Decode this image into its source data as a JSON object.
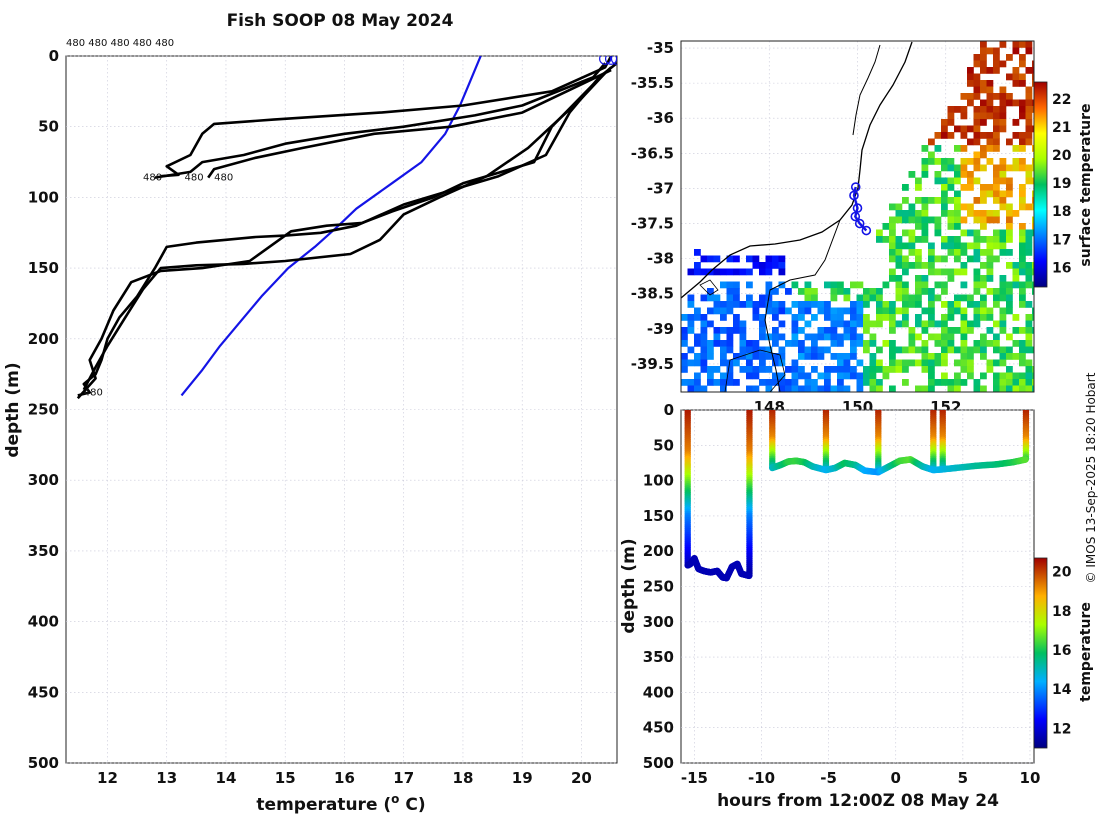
{
  "title": "Fish SOOP 08 May 2024",
  "credit": "© IMOS 13-Sep-2025 18:20 Hobart",
  "colors": {
    "profile": "#000000",
    "climatology": "#1414e6",
    "track": "#1414e6",
    "coast": "#000000"
  },
  "chart_data": [
    {
      "type": "line",
      "name": "temperature-depth-profile",
      "xlabel": "temperature (o C)",
      "xlabel_main": "temperature (",
      "xlabel_sup": "o",
      "xlabel_end": " C)",
      "ylabel": "depth (m)",
      "xlim": [
        11.3,
        20.6
      ],
      "ylim": [
        500,
        0
      ],
      "xticks": [
        12,
        13,
        14,
        15,
        16,
        17,
        18,
        19,
        20
      ],
      "yticks": [
        0,
        50,
        100,
        150,
        200,
        250,
        300,
        350,
        400,
        450,
        500
      ],
      "top_annotation": "480 480 480 480 480",
      "labels_480": [
        {
          "text": "480",
          "x": 12.6,
          "y": 88
        },
        {
          "text": "480",
          "x": 13.3,
          "y": 88
        },
        {
          "text": "480",
          "x": 13.8,
          "y": 88
        },
        {
          "text": "480",
          "x": 11.6,
          "y": 240
        }
      ],
      "series": [
        {
          "name": "climatology",
          "color": "#1414e6",
          "x": [
            18.3,
            18.1,
            17.95,
            17.7,
            17.3,
            16.8,
            16.2,
            15.9,
            15.5,
            15.05,
            14.6,
            14.2,
            13.9,
            13.6,
            13.25
          ],
          "y": [
            0,
            20,
            35,
            55,
            75,
            90,
            108,
            120,
            135,
            150,
            170,
            190,
            205,
            222,
            240
          ]
        },
        {
          "name": "profile-1",
          "color": "#000000",
          "x": [
            20.5,
            20.4,
            19.5,
            18.0,
            16.6,
            14.8,
            13.8,
            13.6,
            13.4,
            13.0,
            13.2,
            12.9
          ],
          "y": [
            0,
            8,
            25,
            35,
            40,
            45,
            48,
            55,
            70,
            78,
            84,
            85
          ]
        },
        {
          "name": "profile-2",
          "color": "#000000",
          "x": [
            20.4,
            20.2,
            19.0,
            18.2,
            17.0,
            16.0,
            15.0,
            14.3,
            13.6,
            13.4,
            12.8
          ],
          "y": [
            5,
            15,
            35,
            42,
            50,
            55,
            62,
            70,
            75,
            82,
            86
          ]
        },
        {
          "name": "profile-3",
          "color": "#000000",
          "x": [
            20.5,
            20.0,
            19.0,
            17.8,
            16.5,
            15.3,
            14.5,
            13.8,
            13.7
          ],
          "y": [
            10,
            20,
            40,
            50,
            55,
            65,
            72,
            80,
            86
          ]
        },
        {
          "name": "profile-4",
          "color": "#000000",
          "x": [
            20.6,
            20.3,
            19.8,
            19.4,
            18.6,
            17.8,
            17.0,
            16.2,
            15.6,
            15.0,
            14.5,
            14.0,
            13.5,
            13.0,
            12.8,
            12.5,
            12.2,
            12.0,
            11.9,
            11.8,
            11.6,
            11.7,
            11.5
          ],
          "y": [
            5,
            15,
            40,
            70,
            85,
            95,
            105,
            120,
            125,
            127,
            128,
            130,
            132,
            135,
            150,
            170,
            185,
            200,
            215,
            225,
            232,
            238,
            240
          ]
        },
        {
          "name": "profile-5",
          "color": "#000000",
          "x": [
            20.5,
            20.2,
            19.5,
            19.2,
            18.0,
            17.5,
            16.8,
            16.3,
            15.7,
            15.1,
            14.4,
            13.6,
            12.9,
            12.4,
            12.1,
            11.9,
            11.7,
            11.8,
            11.5
          ],
          "y": [
            8,
            20,
            50,
            75,
            90,
            100,
            110,
            118,
            120,
            124,
            145,
            150,
            152,
            160,
            180,
            200,
            215,
            228,
            242
          ]
        },
        {
          "name": "profile-6",
          "color": "#000000",
          "x": [
            20.4,
            20.0,
            19.1,
            18.4,
            17.6,
            17.0,
            16.6,
            16.1,
            15.0,
            14.3,
            13.5,
            12.9,
            12.6,
            12.3,
            12.0,
            11.8,
            11.6
          ],
          "y": [
            12,
            30,
            65,
            85,
            100,
            112,
            130,
            140,
            145,
            147,
            148,
            150,
            165,
            185,
            205,
            220,
            236
          ]
        }
      ],
      "markers": [
        {
          "x": 20.4,
          "y": 2
        },
        {
          "x": 20.5,
          "y": 2
        },
        {
          "x": 20.6,
          "y": 2
        }
      ]
    },
    {
      "type": "heatmap",
      "name": "surface-temperature-map",
      "xlim": [
        146.0,
        154.0
      ],
      "ylim": [
        -39.9,
        -34.9
      ],
      "yticks": [
        -35,
        -35.5,
        -36,
        -36.5,
        -37,
        -37.5,
        -38,
        -38.5,
        -39,
        -39.5
      ],
      "ytick_labels": [
        "-35",
        "-35.5",
        "-36",
        "-36.5",
        "-37",
        "-37.5",
        "-38",
        "-38.5",
        "-39",
        "-39.5"
      ],
      "xticks": [
        148,
        150,
        152
      ],
      "colorbar": {
        "label": "surface temperature",
        "vmin": 15.3,
        "vmax": 22.6,
        "ticks": [
          16,
          17,
          18,
          19,
          20,
          21,
          22
        ]
      },
      "track": [
        {
          "lon": 149.96,
          "lat": -36.98
        },
        {
          "lon": 149.92,
          "lat": -37.1
        },
        {
          "lon": 150.0,
          "lat": -37.28
        },
        {
          "lon": 149.95,
          "lat": -37.4
        },
        {
          "lon": 150.05,
          "lat": -37.5
        },
        {
          "lon": 150.2,
          "lat": -37.6
        }
      ]
    },
    {
      "type": "scatter",
      "name": "depth-time-section",
      "xlabel": "hours from 12:00Z 08 May 24",
      "ylabel": "depth (m)",
      "xlim": [
        -16,
        10.3
      ],
      "ylim": [
        500,
        0
      ],
      "xticks": [
        -15,
        -10,
        -5,
        0,
        5,
        10
      ],
      "yticks": [
        0,
        50,
        100,
        150,
        200,
        250,
        300,
        350,
        400,
        450,
        500
      ],
      "colorbar": {
        "label": "temperature",
        "vmin": 11.0,
        "vmax": 20.7,
        "ticks": [
          12,
          14,
          16,
          18,
          20
        ]
      },
      "casts": [
        {
          "x": -15.5,
          "bottom": 220
        },
        {
          "x": -10.9,
          "bottom": 235
        },
        {
          "x": -9.2,
          "bottom": 82
        },
        {
          "x": -5.2,
          "bottom": 85
        },
        {
          "x": -1.3,
          "bottom": 88
        },
        {
          "x": 2.8,
          "bottom": 85
        },
        {
          "x": 3.5,
          "bottom": 84
        },
        {
          "x": 9.7,
          "bottom": 70
        }
      ],
      "bottom_track": [
        {
          "x": -15.5,
          "y": 220
        },
        {
          "x": -15.3,
          "y": 218
        },
        {
          "x": -15.0,
          "y": 210
        },
        {
          "x": -14.7,
          "y": 225
        },
        {
          "x": -14.3,
          "y": 228
        },
        {
          "x": -13.8,
          "y": 230
        },
        {
          "x": -13.3,
          "y": 228
        },
        {
          "x": -12.9,
          "y": 237
        },
        {
          "x": -12.6,
          "y": 238
        },
        {
          "x": -12.2,
          "y": 222
        },
        {
          "x": -11.8,
          "y": 218
        },
        {
          "x": -11.5,
          "y": 232
        },
        {
          "x": -10.9,
          "y": 235
        }
      ],
      "shallow_track": [
        {
          "x": -9.2,
          "y": 82
        },
        {
          "x": -8.6,
          "y": 78
        },
        {
          "x": -8.0,
          "y": 73
        },
        {
          "x": -7.4,
          "y": 72
        },
        {
          "x": -6.8,
          "y": 74
        },
        {
          "x": -6.2,
          "y": 80
        },
        {
          "x": -5.2,
          "y": 85
        },
        {
          "x": -4.5,
          "y": 82
        },
        {
          "x": -3.8,
          "y": 75
        },
        {
          "x": -3.0,
          "y": 78
        },
        {
          "x": -2.3,
          "y": 86
        },
        {
          "x": -1.3,
          "y": 88
        },
        {
          "x": -0.5,
          "y": 80
        },
        {
          "x": 0.3,
          "y": 72
        },
        {
          "x": 1.1,
          "y": 70
        },
        {
          "x": 2.0,
          "y": 80
        },
        {
          "x": 2.8,
          "y": 85
        },
        {
          "x": 3.5,
          "y": 84
        },
        {
          "x": 4.5,
          "y": 82
        },
        {
          "x": 6.0,
          "y": 79
        },
        {
          "x": 7.5,
          "y": 77
        },
        {
          "x": 8.7,
          "y": 74
        },
        {
          "x": 9.7,
          "y": 70
        }
      ]
    }
  ]
}
